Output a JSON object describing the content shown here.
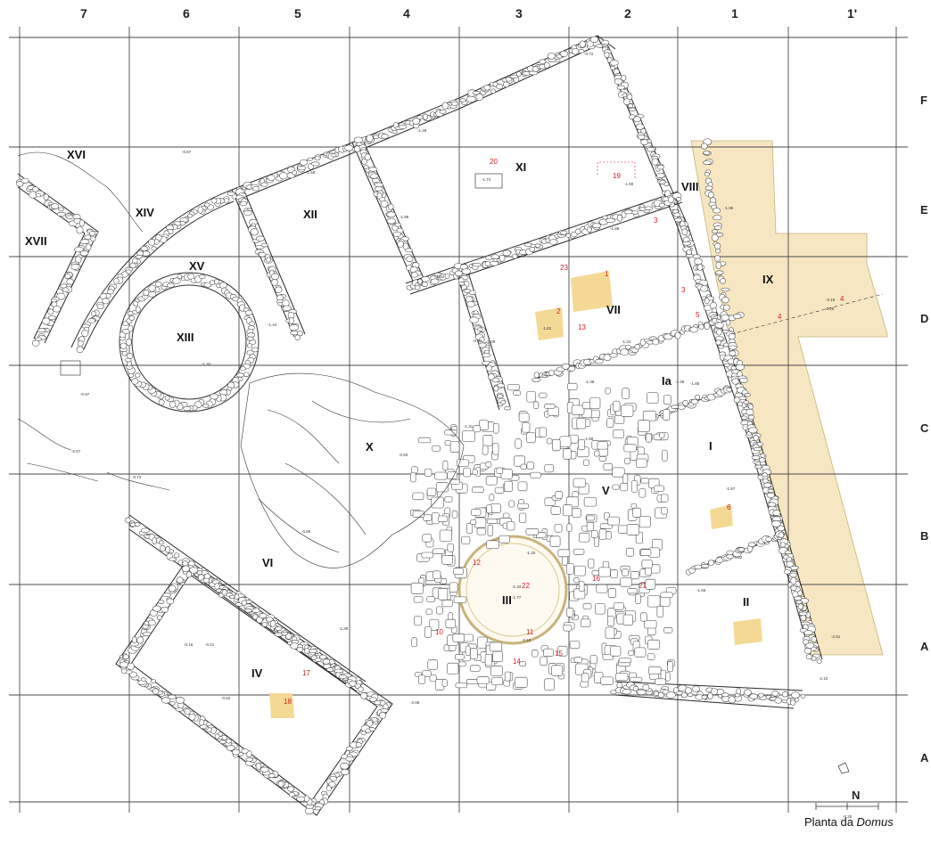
{
  "title": "Planta da Domus",
  "caption": {
    "prefix": "Planta da ",
    "emph": "Domus"
  },
  "grid_columns": [
    "7",
    "6",
    "5",
    "4",
    "3",
    "2",
    "1",
    "1'"
  ],
  "grid_rows": [
    "F",
    "E",
    "D",
    "C",
    "B",
    "A",
    "A"
  ],
  "rooms": [
    "I",
    "Ia",
    "II",
    "III",
    "IV",
    "V",
    "VI",
    "VII",
    "VIII",
    "IX",
    "X",
    "XI",
    "XII",
    "XIII",
    "XIV",
    "XV",
    "XVI",
    "XVII"
  ],
  "features": [
    "1",
    "2",
    "3",
    "3",
    "4",
    "4",
    "5",
    "6",
    "10",
    "11",
    "12",
    "13",
    "14",
    "15",
    "16",
    "17",
    "18",
    "19",
    "20",
    "21",
    "22",
    "23"
  ],
  "elevations": [
    "-0.72",
    "-1.49",
    "-1.58",
    "-1.74",
    "-1.89",
    "-1.84",
    "-1.81",
    "-1.95",
    "-1.97",
    "-1.90",
    "-1.88",
    "-1.44",
    "-1.32",
    "-1.33",
    "-1.34",
    "-1.36",
    "-2.08",
    "-2.19",
    "-0.97",
    "-0.87",
    "-0.57",
    "-0.74",
    "-0.80",
    "-0.93",
    "-0.82",
    "-0.16",
    "-0.21",
    "-0.62",
    "-1.39",
    "-1.09",
    "-1.77",
    "-1.38",
    "-1.24",
    "-1.31",
    "-1.59",
    "-2.51",
    "-2.10",
    "-1.66",
    "-1.85",
    "-0.18",
    "-0.25",
    "-0.54"
  ],
  "north": {
    "label": "N",
    "scale": "-0.25"
  },
  "colors": {
    "hatch": "#f6e7c2",
    "patch": "#f4d995",
    "feature_text": "#d0202a",
    "grid": "#4a4a4a"
  }
}
